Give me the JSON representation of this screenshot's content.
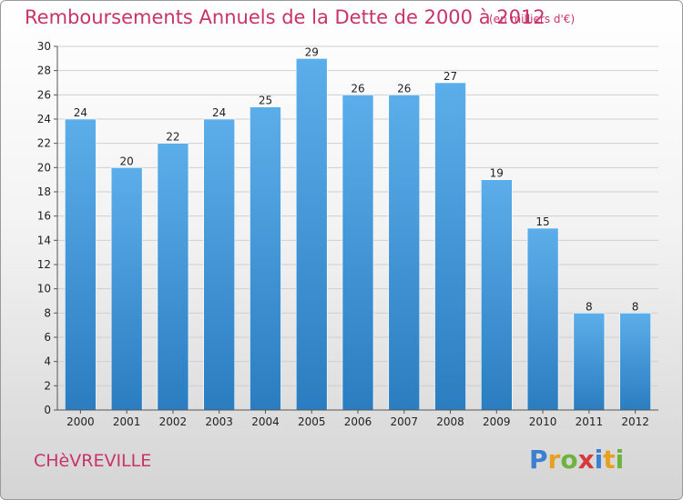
{
  "title": "Remboursements Annuels de la Dette de 2000 à 2012",
  "unit": "(en milliers d'€)",
  "commune": "CHèVREVILLE",
  "logo": {
    "text": "Proxiti",
    "letters": [
      {
        "char": "P",
        "color": "#3b7fd0"
      },
      {
        "char": "r",
        "color": "#e8a020"
      },
      {
        "char": "o",
        "color": "#6cb33f"
      },
      {
        "char": "x",
        "color": "#d63a3a"
      },
      {
        "char": "i",
        "color": "#3b7fd0"
      },
      {
        "char": "t",
        "color": "#e8a020"
      },
      {
        "char": "i",
        "color": "#6cb33f"
      }
    ]
  },
  "colors": {
    "title": "#c8336a",
    "bar_top": "#5caeea",
    "bar_bottom": "#2a7dc0"
  },
  "chart_data": {
    "type": "bar",
    "categories": [
      "2000",
      "2001",
      "2002",
      "2003",
      "2004",
      "2005",
      "2006",
      "2007",
      "2008",
      "2009",
      "2010",
      "2011",
      "2012"
    ],
    "values": [
      24,
      20,
      22,
      24,
      25,
      29,
      26,
      26,
      27,
      19,
      15,
      8,
      8
    ],
    "ylim": [
      0,
      30
    ],
    "yticks": [
      0,
      2,
      4,
      6,
      8,
      10,
      12,
      14,
      16,
      18,
      20,
      22,
      24,
      26,
      28,
      30
    ],
    "grid": true,
    "xlabel": "",
    "ylabel": ""
  }
}
